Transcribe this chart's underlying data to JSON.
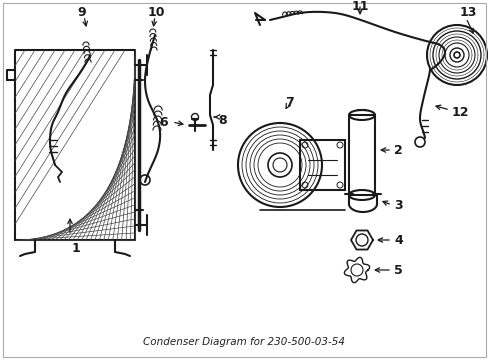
{
  "title": "Condenser Diagram for 230-500-03-54",
  "bg": "#ffffff",
  "lc": "#1a1a1a",
  "figsize": [
    4.89,
    3.6
  ],
  "dpi": 100
}
